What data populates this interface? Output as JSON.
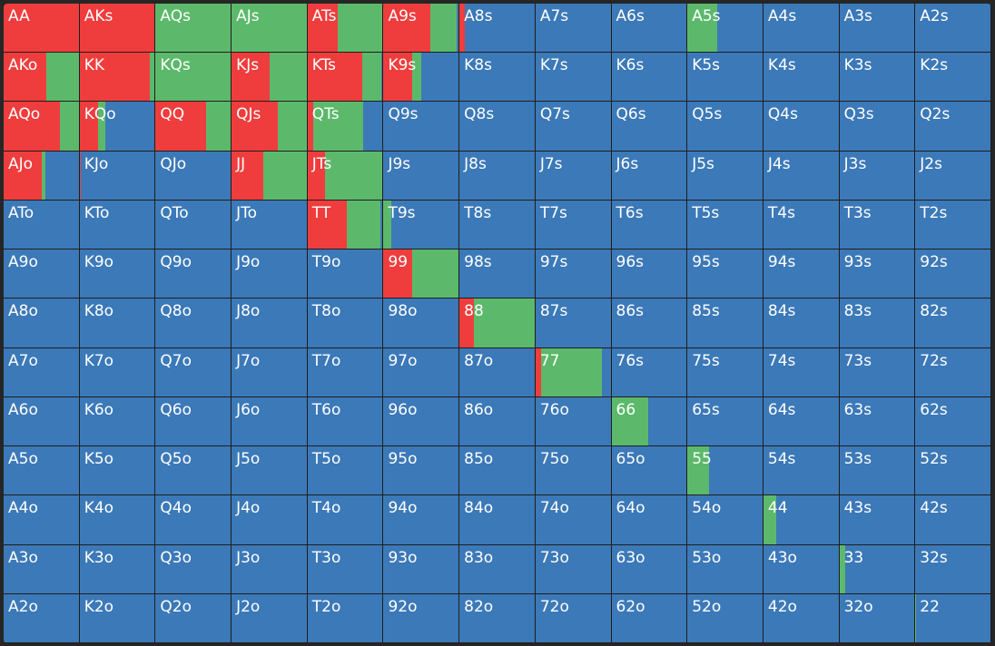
{
  "colors": [
    "#ef3d3d",
    "#5cb96b",
    "#3c79b8"
  ],
  "grid": {
    "rows": [
      [
        [
          "AA",
          100,
          0,
          0
        ],
        [
          "AKs",
          100,
          0,
          0
        ],
        [
          "AQs",
          0,
          100,
          0
        ],
        [
          "AJs",
          0,
          100,
          0
        ],
        [
          "ATs",
          40,
          60,
          0
        ],
        [
          "A9s",
          62,
          36,
          2
        ],
        [
          "A8s",
          7,
          0,
          93
        ],
        [
          "A7s",
          0,
          0,
          100
        ],
        [
          "A6s",
          0,
          0,
          100
        ],
        [
          "A5s",
          0,
          40,
          60
        ],
        [
          "A4s",
          0,
          0,
          100
        ],
        [
          "A3s",
          0,
          0,
          100
        ],
        [
          "A2s",
          0,
          0,
          100
        ]
      ],
      [
        [
          "AKo",
          57,
          43,
          0
        ],
        [
          "KK",
          93,
          7,
          0
        ],
        [
          "KQs",
          0,
          100,
          0
        ],
        [
          "KJs",
          51,
          49,
          0
        ],
        [
          "KTs",
          73,
          25,
          2
        ],
        [
          "K9s",
          38,
          12,
          50
        ],
        [
          "K8s",
          0,
          0,
          100
        ],
        [
          "K7s",
          0,
          0,
          100
        ],
        [
          "K6s",
          0,
          0,
          100
        ],
        [
          "K5s",
          0,
          0,
          100
        ],
        [
          "K4s",
          0,
          0,
          100
        ],
        [
          "K3s",
          0,
          0,
          100
        ],
        [
          "K2s",
          0,
          0,
          100
        ]
      ],
      [
        [
          "AQo",
          75,
          25,
          0
        ],
        [
          "KQo",
          25,
          9,
          66
        ],
        [
          "QQ",
          67,
          33,
          0
        ],
        [
          "QJs",
          62,
          38,
          0
        ],
        [
          "QTs",
          8,
          66,
          26
        ],
        [
          "Q9s",
          0,
          0,
          100
        ],
        [
          "Q8s",
          0,
          0,
          100
        ],
        [
          "Q7s",
          0,
          0,
          100
        ],
        [
          "Q6s",
          0,
          0,
          100
        ],
        [
          "Q5s",
          0,
          0,
          100
        ],
        [
          "Q4s",
          0,
          0,
          100
        ],
        [
          "Q3s",
          0,
          0,
          100
        ],
        [
          "Q2s",
          0,
          0,
          100
        ]
      ],
      [
        [
          "AJo",
          51,
          5,
          44
        ],
        [
          "KJo",
          1,
          0,
          99
        ],
        [
          "QJo",
          0,
          0,
          100
        ],
        [
          "JJ",
          42,
          58,
          0
        ],
        [
          "JTs",
          23,
          77,
          0
        ],
        [
          "J9s",
          0,
          0,
          100
        ],
        [
          "J8s",
          0,
          0,
          100
        ],
        [
          "J7s",
          0,
          0,
          100
        ],
        [
          "J6s",
          0,
          0,
          100
        ],
        [
          "J5s",
          0,
          0,
          100
        ],
        [
          "J4s",
          0,
          0,
          100
        ],
        [
          "J3s",
          0,
          0,
          100
        ],
        [
          "J2s",
          0,
          0,
          100
        ]
      ],
      [
        [
          "ATo",
          0,
          0,
          100
        ],
        [
          "KTo",
          0,
          0,
          100
        ],
        [
          "QTo",
          0,
          0,
          100
        ],
        [
          "JTo",
          0,
          0,
          100
        ],
        [
          "TT",
          52,
          45,
          3
        ],
        [
          "T9s",
          0,
          10,
          90
        ],
        [
          "T8s",
          0,
          0,
          100
        ],
        [
          "T7s",
          0,
          0,
          100
        ],
        [
          "T6s",
          0,
          0,
          100
        ],
        [
          "T5s",
          0,
          0,
          100
        ],
        [
          "T4s",
          0,
          0,
          100
        ],
        [
          "T3s",
          0,
          0,
          100
        ],
        [
          "T2s",
          0,
          0,
          100
        ]
      ],
      [
        [
          "A9o",
          0,
          0,
          100
        ],
        [
          "K9o",
          0,
          0,
          100
        ],
        [
          "Q9o",
          0,
          0,
          100
        ],
        [
          "J9o",
          0,
          0,
          100
        ],
        [
          "T9o",
          0,
          0,
          100
        ],
        [
          "99",
          38,
          62,
          0
        ],
        [
          "98s",
          0,
          0,
          100
        ],
        [
          "97s",
          0,
          0,
          100
        ],
        [
          "96s",
          0,
          0,
          100
        ],
        [
          "95s",
          0,
          0,
          100
        ],
        [
          "94s",
          0,
          0,
          100
        ],
        [
          "93s",
          0,
          0,
          100
        ],
        [
          "92s",
          0,
          0,
          100
        ]
      ],
      [
        [
          "A8o",
          0,
          0,
          100
        ],
        [
          "K8o",
          0,
          0,
          100
        ],
        [
          "Q8o",
          0,
          0,
          100
        ],
        [
          "J8o",
          0,
          0,
          100
        ],
        [
          "T8o",
          0,
          0,
          100
        ],
        [
          "98o",
          0,
          0,
          100
        ],
        [
          "88",
          19,
          81,
          0
        ],
        [
          "87s",
          0,
          0,
          100
        ],
        [
          "86s",
          0,
          0,
          100
        ],
        [
          "85s",
          0,
          0,
          100
        ],
        [
          "84s",
          0,
          0,
          100
        ],
        [
          "83s",
          0,
          0,
          100
        ],
        [
          "82s",
          0,
          0,
          100
        ]
      ],
      [
        [
          "A7o",
          0,
          0,
          100
        ],
        [
          "K7o",
          0,
          0,
          100
        ],
        [
          "Q7o",
          0,
          0,
          100
        ],
        [
          "J7o",
          0,
          0,
          100
        ],
        [
          "T7o",
          0,
          0,
          100
        ],
        [
          "97o",
          0,
          0,
          100
        ],
        [
          "87o",
          0,
          0,
          100
        ],
        [
          "77",
          8,
          81,
          11
        ],
        [
          "76s",
          0,
          0,
          100
        ],
        [
          "75s",
          0,
          0,
          100
        ],
        [
          "74s",
          0,
          0,
          100
        ],
        [
          "73s",
          0,
          0,
          100
        ],
        [
          "72s",
          0,
          0,
          100
        ]
      ],
      [
        [
          "A6o",
          0,
          0,
          100
        ],
        [
          "K6o",
          0,
          0,
          100
        ],
        [
          "Q6o",
          0,
          0,
          100
        ],
        [
          "J6o",
          0,
          0,
          100
        ],
        [
          "T6o",
          0,
          0,
          100
        ],
        [
          "96o",
          0,
          0,
          100
        ],
        [
          "86o",
          0,
          0,
          100
        ],
        [
          "76o",
          0,
          0,
          100
        ],
        [
          "66",
          0,
          49,
          51
        ],
        [
          "65s",
          0,
          0,
          100
        ],
        [
          "64s",
          0,
          0,
          100
        ],
        [
          "63s",
          0,
          0,
          100
        ],
        [
          "62s",
          0,
          0,
          100
        ]
      ],
      [
        [
          "A5o",
          0,
          0,
          100
        ],
        [
          "K5o",
          0,
          0,
          100
        ],
        [
          "Q5o",
          0,
          0,
          100
        ],
        [
          "J5o",
          0,
          0,
          100
        ],
        [
          "T5o",
          0,
          0,
          100
        ],
        [
          "95o",
          0,
          0,
          100
        ],
        [
          "85o",
          0,
          0,
          100
        ],
        [
          "75o",
          0,
          0,
          100
        ],
        [
          "65o",
          0,
          0,
          100
        ],
        [
          "55",
          0,
          29,
          71
        ],
        [
          "54s",
          0,
          0,
          100
        ],
        [
          "53s",
          0,
          0,
          100
        ],
        [
          "52s",
          0,
          0,
          100
        ]
      ],
      [
        [
          "A4o",
          0,
          0,
          100
        ],
        [
          "K4o",
          0,
          0,
          100
        ],
        [
          "Q4o",
          0,
          0,
          100
        ],
        [
          "J4o",
          0,
          0,
          100
        ],
        [
          "T4o",
          0,
          0,
          100
        ],
        [
          "94o",
          0,
          0,
          100
        ],
        [
          "84o",
          0,
          0,
          100
        ],
        [
          "74o",
          0,
          0,
          100
        ],
        [
          "64o",
          0,
          0,
          100
        ],
        [
          "54o",
          0,
          0,
          100
        ],
        [
          "44",
          0,
          17,
          83
        ],
        [
          "43s",
          0,
          0,
          100
        ],
        [
          "42s",
          0,
          0,
          100
        ]
      ],
      [
        [
          "A3o",
          0,
          0,
          100
        ],
        [
          "K3o",
          0,
          0,
          100
        ],
        [
          "Q3o",
          0,
          0,
          100
        ],
        [
          "J3o",
          0,
          0,
          100
        ],
        [
          "T3o",
          0,
          0,
          100
        ],
        [
          "93o",
          0,
          0,
          100
        ],
        [
          "83o",
          0,
          0,
          100
        ],
        [
          "73o",
          0,
          0,
          100
        ],
        [
          "63o",
          0,
          0,
          100
        ],
        [
          "53o",
          0,
          0,
          100
        ],
        [
          "43o",
          0,
          0,
          100
        ],
        [
          "33",
          0,
          8,
          92
        ],
        [
          "32s",
          0,
          0,
          100
        ]
      ],
      [
        [
          "A2o",
          0,
          0,
          100
        ],
        [
          "K2o",
          0,
          0,
          100
        ],
        [
          "Q2o",
          0,
          0,
          100
        ],
        [
          "J2o",
          0,
          0,
          100
        ],
        [
          "T2o",
          0,
          0,
          100
        ],
        [
          "92o",
          0,
          0,
          100
        ],
        [
          "82o",
          0,
          0,
          100
        ],
        [
          "72o",
          0,
          0,
          100
        ],
        [
          "62o",
          0,
          0,
          100
        ],
        [
          "52o",
          0,
          0,
          100
        ],
        [
          "42o",
          0,
          0,
          100
        ],
        [
          "32o",
          0,
          0,
          100
        ],
        [
          "22",
          0,
          1,
          99
        ]
      ]
    ]
  }
}
